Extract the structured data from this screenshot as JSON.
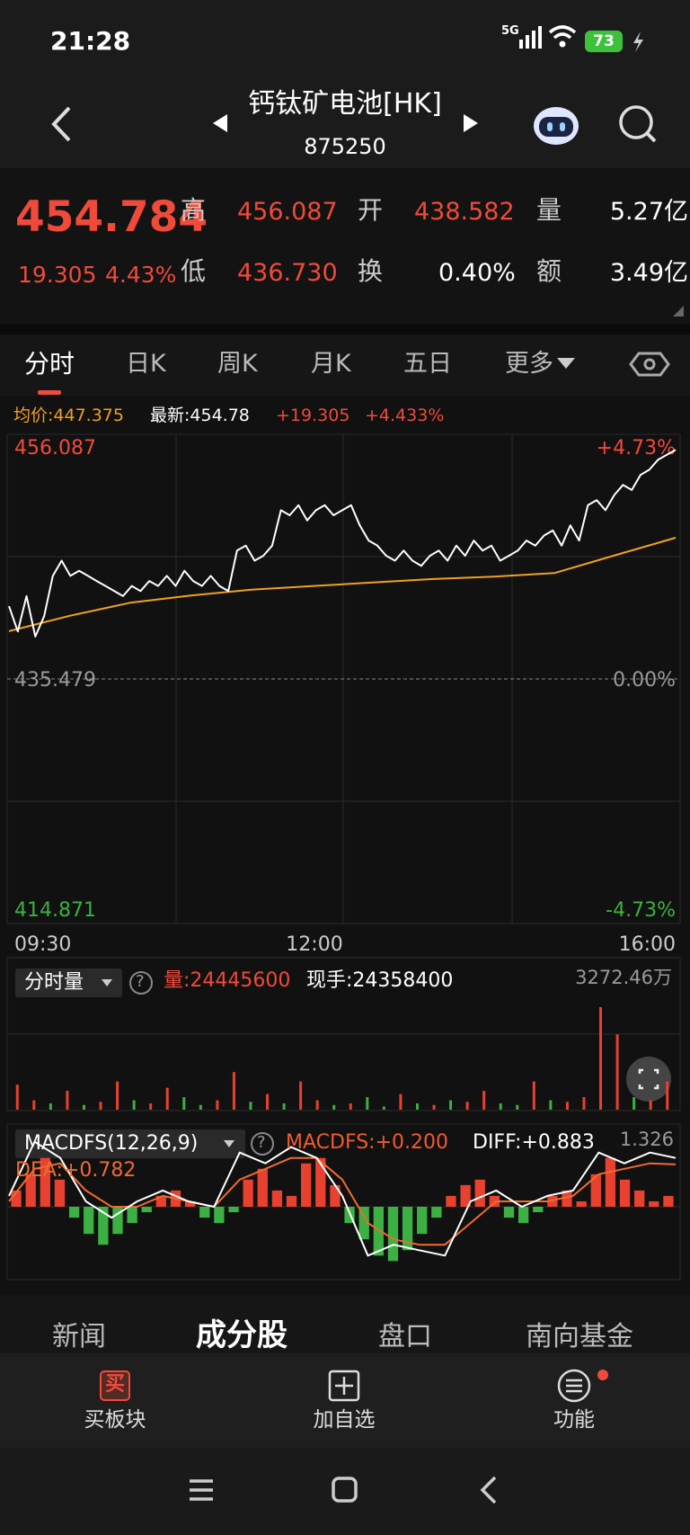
{
  "status": {
    "time": "21:28",
    "network": "5G",
    "battery": "73"
  },
  "header": {
    "title": "钙钛矿电池[HK]",
    "code": "875250"
  },
  "quote": {
    "price": "454.784",
    "change": "19.305",
    "change_pct": "4.43%",
    "stats": [
      {
        "label": "高",
        "value": "456.087"
      },
      {
        "label": "开",
        "value": "438.582"
      },
      {
        "label": "量",
        "value": "5.27亿"
      },
      {
        "label": "低",
        "value": "436.730"
      },
      {
        "label": "换",
        "value": "0.40%"
      },
      {
        "label": "额",
        "value": "3.49亿"
      }
    ]
  },
  "tabs": [
    "分时",
    "日K",
    "周K",
    "月K",
    "五日",
    "更多"
  ],
  "info": [
    "均价:447.375",
    "最新:454.78",
    "+19.305",
    "+4.433%"
  ],
  "price_chart": {
    "type": "line",
    "ylim": [
      414.871,
      456.087
    ],
    "yticks": [
      456.087,
      435.479,
      414.871
    ],
    "pct_labels": [
      "+4.73%",
      "0.00%",
      "-4.73%"
    ],
    "x_labels": [
      "09:30",
      "12:00",
      "16:00"
    ],
    "price": {
      "color": "#ffffff",
      "values": [
        441.61,
        439.48,
        442.46,
        439.05,
        440.76,
        444.16,
        445.44,
        444.16,
        444.59,
        444.16,
        443.73,
        443.31,
        442.88,
        442.46,
        443.31,
        442.88,
        443.73,
        443.31,
        444.16,
        443.31,
        444.59,
        443.73,
        443.31,
        444.16,
        443.31,
        442.88,
        446.29,
        446.71,
        445.44,
        445.86,
        446.71,
        449.69,
        449.27,
        450.12,
        448.84,
        449.69,
        450.12,
        449.27,
        449.69,
        450.12,
        448.41,
        447.14,
        446.71,
        445.86,
        445.44,
        446.29,
        445.44,
        445.01,
        445.86,
        446.29,
        445.44,
        446.71,
        445.86,
        447.14,
        446.29,
        446.71,
        445.44,
        445.86,
        446.29,
        447.14,
        446.71,
        447.56,
        447.99,
        446.71,
        448.41,
        447.14,
        450.12,
        450.54,
        449.69,
        450.97,
        451.82,
        451.4,
        452.67,
        453.1,
        453.95,
        454.37,
        454.78
      ]
    },
    "avg": {
      "color": "#f0a020",
      "values": [
        439.5,
        440.8,
        441.9,
        442.5,
        443.0,
        443.3,
        443.6,
        443.9,
        444.1,
        444.4,
        445.9,
        447.375
      ]
    }
  },
  "volume_chart": {
    "type": "bar",
    "menu": "分时量",
    "help": "?",
    "volume": "量:24445600",
    "hand": "现手:24358400",
    "max_label": "3272.46万",
    "ylim": [
      0,
      3272.46
    ],
    "values": [
      800,
      300,
      200,
      600,
      150,
      250,
      900,
      300,
      200,
      700,
      400,
      150,
      300,
      1200,
      250,
      500,
      200,
      900,
      300,
      150,
      200,
      400,
      100,
      500,
      200,
      150,
      300,
      250,
      600,
      200,
      150,
      900,
      300,
      250,
      400,
      3272.46,
      2400,
      400,
      300,
      900
    ],
    "colors": [
      "#e8412f",
      "#e8412f",
      "#3cb043",
      "#e8412f",
      "#3cb043",
      "#e8412f",
      "#e8412f",
      "#3cb043",
      "#e8412f",
      "#e8412f",
      "#3cb043",
      "#3cb043",
      "#e8412f",
      "#e8412f",
      "#3cb043",
      "#e8412f",
      "#3cb043",
      "#e8412f",
      "#e8412f",
      "#3cb043",
      "#e8412f",
      "#3cb043",
      "#3cb043",
      "#e8412f",
      "#3cb043",
      "#e8412f",
      "#3cb043",
      "#e8412f",
      "#e8412f",
      "#3cb043",
      "#3cb043",
      "#e8412f",
      "#3cb043",
      "#e8412f",
      "#e8412f",
      "#e8412f",
      "#e8412f",
      "#3cb043",
      "#e8412f",
      "#e8412f"
    ]
  },
  "macd_chart": {
    "type": "bar",
    "menu": "MACDFS(12,26,9)",
    "help": "?",
    "macd_label": "MACDFS:+0.200",
    "diff_label": "DIFF:+0.883",
    "dea_label": "DEA:+0.782",
    "max_label": "1.326",
    "ylim": [
      -1.326,
      1.326
    ],
    "up_color": "#e8412f",
    "down_color": "#3cb043",
    "values": [
      0.3,
      0.6,
      0.9,
      0.5,
      -0.2,
      -0.5,
      -0.7,
      -0.5,
      -0.3,
      -0.1,
      0.2,
      0.3,
      0.1,
      -0.2,
      -0.3,
      -0.1,
      0.5,
      0.7,
      0.3,
      0.2,
      0.8,
      0.9,
      0.4,
      -0.3,
      -0.6,
      -0.9,
      -1.0,
      -0.8,
      -0.5,
      -0.2,
      0.2,
      0.4,
      0.5,
      0.2,
      -0.2,
      -0.3,
      -0.1,
      0.2,
      0.3,
      0.1,
      0.6,
      0.9,
      0.5,
      0.3,
      0.1,
      0.2
    ],
    "diff": {
      "color": "#ffffff",
      "values": [
        0.2,
        1.2,
        0.9,
        0.1,
        -0.2,
        0.1,
        0.3,
        0.1,
        0.0,
        1.0,
        0.8,
        1.1,
        0.9,
        0.2,
        -0.9,
        -0.7,
        -0.8,
        -0.9,
        0.1,
        0.3,
        0.0,
        0.2,
        0.3,
        1.0,
        0.8,
        1.0,
        0.9
      ]
    },
    "dea": {
      "color": "#f06a30",
      "values": [
        0.1,
        0.7,
        0.8,
        0.3,
        0.0,
        0.0,
        0.2,
        0.1,
        0.0,
        0.5,
        0.7,
        0.9,
        0.9,
        0.5,
        -0.3,
        -0.6,
        -0.7,
        -0.7,
        -0.3,
        0.1,
        0.1,
        0.1,
        0.2,
        0.6,
        0.7,
        0.8,
        0.78
      ]
    }
  },
  "bottom_tabs": [
    "新闻",
    "成分股",
    "盘口",
    "南向基金"
  ],
  "actions": [
    {
      "icon": "买",
      "label": "买板块"
    },
    {
      "label": "加自选"
    },
    {
      "label": "功能"
    }
  ]
}
